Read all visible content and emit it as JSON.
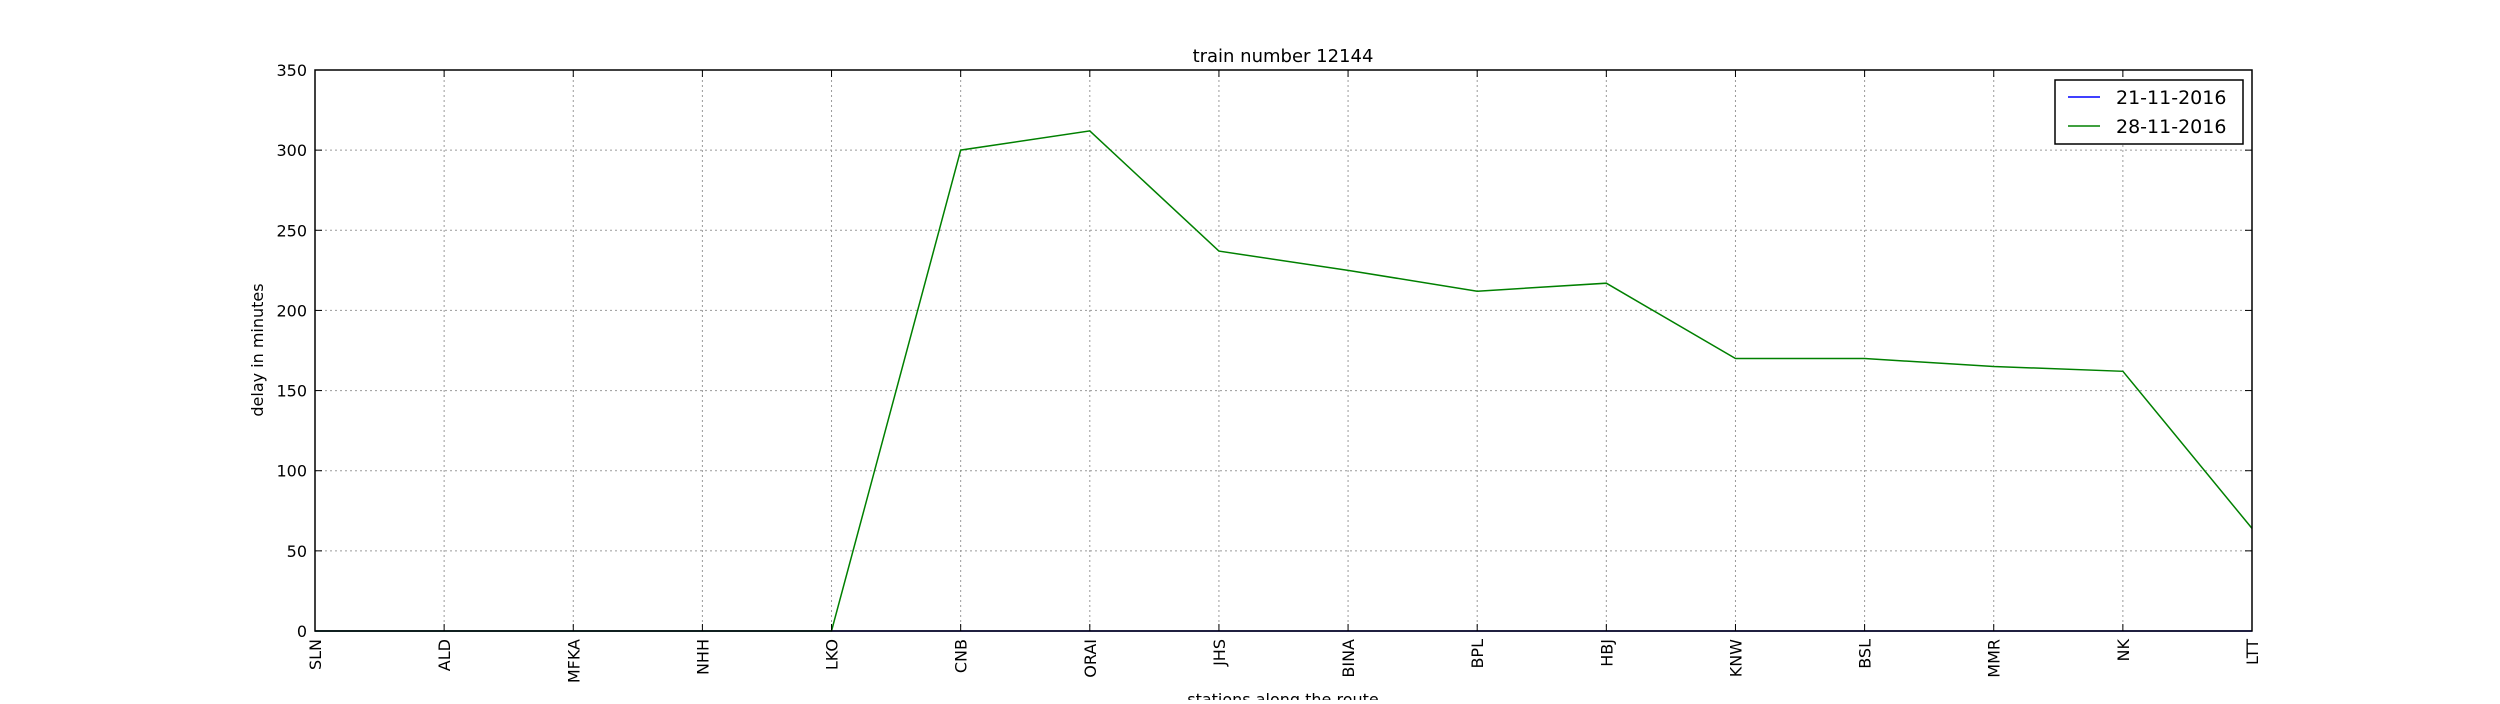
{
  "chart_data": {
    "type": "line",
    "title": "train number 12144",
    "xlabel": "stations along the route",
    "ylabel": "delay in minutes",
    "categories": [
      "SLN",
      "ALD",
      "MFKA",
      "NHH",
      "LKO",
      "CNB",
      "ORAI",
      "JHS",
      "BINA",
      "BPL",
      "HBJ",
      "KNW",
      "BSL",
      "MMR",
      "NK",
      "LTT"
    ],
    "ylim": [
      0,
      350
    ],
    "yticks": [
      0,
      50,
      100,
      150,
      200,
      250,
      300,
      350
    ],
    "grid": true,
    "legend_position": "top-right",
    "series": [
      {
        "name": "21-11-2016",
        "color": "#0000ff",
        "values": [
          0,
          0,
          0,
          0,
          0,
          0,
          0,
          0,
          0,
          0,
          0,
          0,
          0,
          0,
          0,
          0
        ]
      },
      {
        "name": "28-11-2016",
        "color": "#008000",
        "values": [
          0,
          0,
          0,
          0,
          0,
          300,
          312,
          237,
          225,
          212,
          217,
          170,
          170,
          165,
          162,
          64
        ]
      }
    ]
  }
}
